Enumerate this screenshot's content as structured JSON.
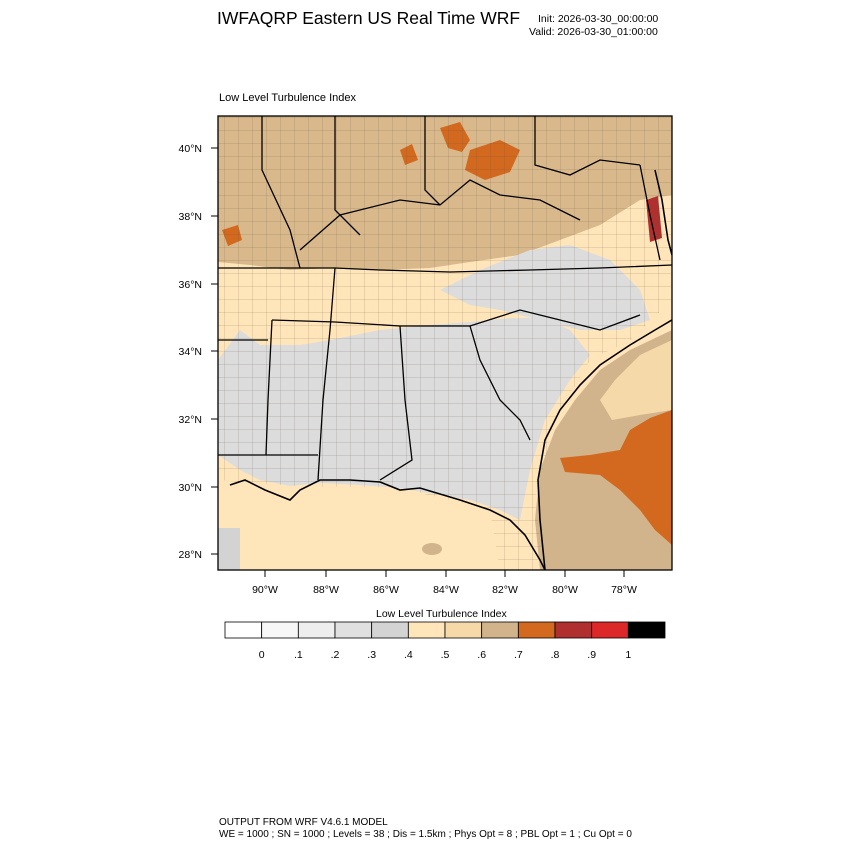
{
  "header": {
    "title": "IWFAQRP Eastern US Real Time WRF",
    "init": "Init: 2026-03-30_00:00:00",
    "valid": "Valid: 2026-03-30_01:00:00"
  },
  "map": {
    "title": "Low Level Turbulence Index",
    "lat_labels": [
      "40°N",
      "38°N",
      "36°N",
      "34°N",
      "32°N",
      "30°N",
      "28°N"
    ],
    "lon_labels": [
      "90°W",
      "88°W",
      "86°W",
      "84°W",
      "82°W",
      "80°W",
      "78°W"
    ]
  },
  "colorbar": {
    "title": "Low Level Turbulence Index",
    "labels": [
      "0",
      ".1",
      ".2",
      ".3",
      ".4",
      ".5",
      ".6",
      ".7",
      ".8",
      ".9",
      "1"
    ],
    "colors": [
      "#ffffff",
      "#f7f7f7",
      "#eeeeee",
      "#e0e0e0",
      "#d3d3d3",
      "#ffe5b9",
      "#f5d9a9",
      "#d2b48c",
      "#d2691e",
      "#b03030",
      "#dc2828",
      "#000000"
    ]
  },
  "footer": {
    "line1": "OUTPUT FROM WRF V4.6.1 MODEL",
    "line2": "WE = 1000 ; SN = 1000 ; Levels = 38 ; Dis = 1.5km ; Phys Opt = 8 ; PBL Opt = 1 ; Cu Opt = 0"
  }
}
